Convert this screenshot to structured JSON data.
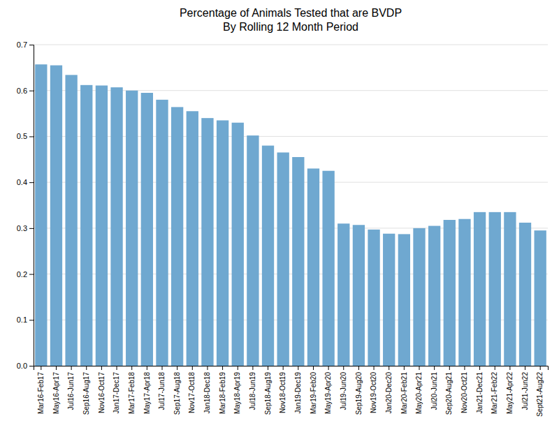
{
  "chart_data": {
    "type": "bar",
    "title": "Percentage of Animals Tested that are BVDP",
    "subtitle": "By Rolling 12 Month Period",
    "categories": [
      "Mar16-Feb17",
      "May16-Apr17",
      "Jul16-Jun17",
      "Sep16-Aug17",
      "Nov16-Oct17",
      "Jan17-Dec17",
      "Mar17-Feb18",
      "May17-Apr18",
      "Jul17-Jun18",
      "Sep17-Aug18",
      "Nov17-Oct18",
      "Jan18-Dec18",
      "Mar18-Feb19",
      "May18-Apr19",
      "Jul18-Jun19",
      "Sep18-Aug19",
      "Nov18-Oct19",
      "Jan19-Dec19",
      "Mar19-Feb20",
      "May19-Apr20",
      "Jul19-Jun20",
      "Sep19-Aug20",
      "Nov19-Oct20",
      "Jan20-Dec20",
      "Mar20-Feb21",
      "May20-Apr21",
      "Jul20-Jun21",
      "Sep20-Aug21",
      "Nov20-Oct21",
      "Jan21-Dec21",
      "Mar21-Feb22",
      "May21-Apr22",
      "Jul21-Jun22",
      "Sept21-Aug22"
    ],
    "values": [
      0.657,
      0.655,
      0.634,
      0.612,
      0.611,
      0.607,
      0.6,
      0.595,
      0.58,
      0.564,
      0.555,
      0.54,
      0.535,
      0.53,
      0.502,
      0.48,
      0.465,
      0.455,
      0.43,
      0.425,
      0.31,
      0.307,
      0.297,
      0.288,
      0.287,
      0.3,
      0.305,
      0.318,
      0.32,
      0.335,
      0.335,
      0.335,
      0.312,
      0.295
    ],
    "color": "#6fa8d0",
    "ylim": [
      0,
      0.7
    ],
    "yticks": [
      {
        "value": 0,
        "label": "0.0"
      },
      0.1,
      0.2,
      0.3,
      0.4,
      0.5,
      0.6,
      0.7
    ],
    "grid": true
  }
}
